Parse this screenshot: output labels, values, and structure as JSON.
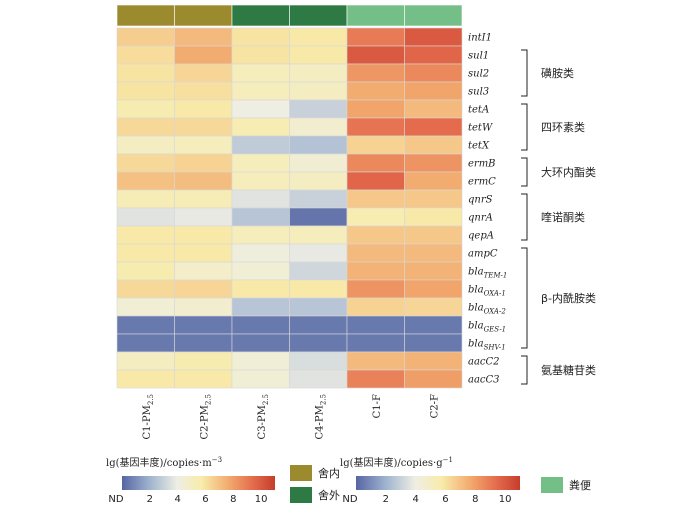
{
  "chart_data": {
    "type": "heatmap",
    "columns": [
      {
        "label": "C1-PM",
        "sub": "2.5",
        "group": "舍内"
      },
      {
        "label": "C2-PM",
        "sub": "2.5",
        "group": "舍内"
      },
      {
        "label": "C3-PM",
        "sub": "2.5",
        "group": "舍外"
      },
      {
        "label": "C4-PM",
        "sub": "2.5",
        "group": "舍外"
      },
      {
        "label": "C1-F",
        "sub": "",
        "group": "粪便"
      },
      {
        "label": "C2-F",
        "sub": "",
        "group": "粪便"
      }
    ],
    "groups": [
      {
        "name": "舍内",
        "color": "#9c8b2e"
      },
      {
        "name": "舍外",
        "color": "#2e7a45"
      },
      {
        "name": "粪便",
        "color": "#74be87"
      }
    ],
    "rows": [
      {
        "gene": "intI1",
        "sub": ""
      },
      {
        "gene": "sul1",
        "sub": ""
      },
      {
        "gene": "sul2",
        "sub": ""
      },
      {
        "gene": "sul3",
        "sub": ""
      },
      {
        "gene": "tetA",
        "sub": ""
      },
      {
        "gene": "tetW",
        "sub": ""
      },
      {
        "gene": "tetX",
        "sub": ""
      },
      {
        "gene": "ermB",
        "sub": ""
      },
      {
        "gene": "ermC",
        "sub": ""
      },
      {
        "gene": "qnrS",
        "sub": ""
      },
      {
        "gene": "qnrA",
        "sub": ""
      },
      {
        "gene": "qepA",
        "sub": ""
      },
      {
        "gene": "ampC",
        "sub": ""
      },
      {
        "gene": "bla",
        "sub": "TEM-1"
      },
      {
        "gene": "bla",
        "sub": "OXA-1"
      },
      {
        "gene": "bla",
        "sub": "OXA-2"
      },
      {
        "gene": "bla",
        "sub": "GES-1"
      },
      {
        "gene": "bla",
        "sub": "SHV-1"
      },
      {
        "gene": "aacC2",
        "sub": ""
      },
      {
        "gene": "aacC3",
        "sub": ""
      }
    ],
    "values": [
      [
        6.6,
        7.2,
        6.0,
        5.8,
        9.0,
        10.0
      ],
      [
        6.2,
        7.6,
        6.0,
        5.8,
        10.0,
        9.6
      ],
      [
        6.0,
        6.4,
        5.2,
        5.0,
        8.2,
        8.6
      ],
      [
        6.0,
        6.1,
        5.2,
        5.0,
        7.6,
        7.8
      ],
      [
        5.6,
        5.8,
        4.0,
        3.0,
        7.8,
        7.2
      ],
      [
        6.3,
        6.3,
        5.5,
        4.6,
        9.2,
        9.4
      ],
      [
        5.0,
        5.2,
        2.8,
        2.5,
        6.5,
        6.8
      ],
      [
        6.3,
        6.5,
        5.2,
        4.5,
        8.6,
        8.3
      ],
      [
        7.0,
        7.1,
        5.2,
        5.0,
        9.6,
        7.6
      ],
      [
        5.4,
        5.4,
        3.6,
        3.0,
        6.8,
        6.8
      ],
      [
        3.6,
        3.8,
        2.6,
        0.4,
        5.5,
        5.8
      ],
      [
        5.8,
        5.8,
        5.2,
        5.2,
        6.8,
        6.8
      ],
      [
        5.8,
        5.8,
        4.2,
        3.8,
        7.2,
        7.2
      ],
      [
        5.6,
        4.8,
        4.4,
        3.2,
        7.4,
        7.4
      ],
      [
        6.3,
        6.4,
        5.8,
        5.8,
        8.3,
        7.8
      ],
      [
        4.4,
        4.6,
        2.6,
        2.6,
        6.5,
        6.4
      ],
      [
        0.5,
        0.5,
        0.5,
        0.5,
        0.5,
        0.5
      ],
      [
        0.5,
        0.5,
        0.5,
        0.5,
        0.5,
        0.5
      ],
      [
        5.0,
        5.6,
        4.4,
        3.4,
        7.2,
        7.4
      ],
      [
        5.8,
        5.8,
        4.4,
        3.6,
        8.8,
        8.0
      ]
    ],
    "row_classes": [
      {
        "name": "磺胺类",
        "from_row": 1,
        "to_row": 3
      },
      {
        "name": "四环素类",
        "from_row": 4,
        "to_row": 6
      },
      {
        "name": "大环内酯类",
        "from_row": 7,
        "to_row": 8
      },
      {
        "name": "喹诺酮类",
        "from_row": 9,
        "to_row": 11
      },
      {
        "name": "β-内酰胺类",
        "from_row": 12,
        "to_row": 17
      },
      {
        "name": "氨基糖苷类",
        "from_row": 18,
        "to_row": 19
      }
    ],
    "color_scale": {
      "min": 0,
      "max": 11,
      "stops": [
        [
          0.0,
          "#5665a3"
        ],
        [
          0.18,
          "#9fb3cf"
        ],
        [
          0.36,
          "#eeeee4"
        ],
        [
          0.52,
          "#f8ecab"
        ],
        [
          0.7,
          "#f2a96d"
        ],
        [
          0.86,
          "#e46a4c"
        ],
        [
          1.0,
          "#c63d2c"
        ]
      ]
    },
    "legends": [
      {
        "title": "lg(基因丰度)/copies·m",
        "title_sup": "−3",
        "ticks": [
          "ND",
          "2",
          "4",
          "6",
          "8",
          "10"
        ]
      },
      {
        "title": "lg(基因丰度)/copies·g",
        "title_sup": "−1",
        "ticks": [
          "ND",
          "2",
          "4",
          "6",
          "8",
          "10"
        ]
      }
    ]
  }
}
